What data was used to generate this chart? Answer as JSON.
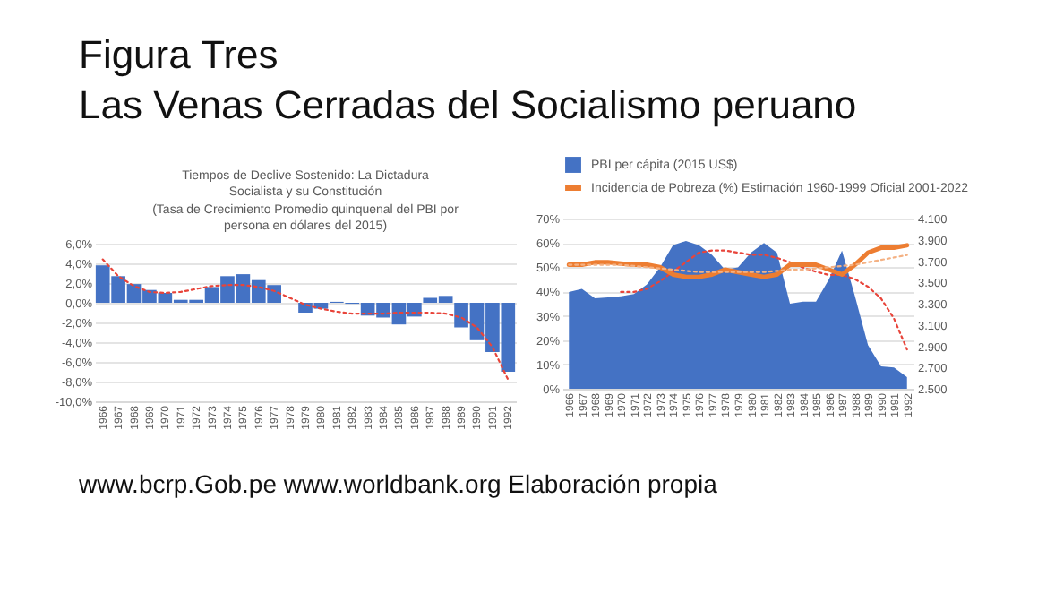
{
  "chart_data": [
    {
      "type": "other",
      "title": "Figura Tres",
      "subtitle": "Las Venas Cerradas del Socialismo peruano",
      "annotations": [
        "www.bcrp.Gob.pe www.worldbank.org Elaboración propia"
      ]
    },
    {
      "type": "bar",
      "title": "Tiempos de Declive Sostenido: La Dictadura Socialista y su Constitución",
      "subtitle": "(Tasa de Crecimiento Promedio quinquenal del PBI por persona en dólares del  2015)",
      "categories": [
        "1966",
        "1967",
        "1968",
        "1969",
        "1970",
        "1971",
        "1972",
        "1973",
        "1974",
        "1975",
        "1976",
        "1977",
        "1978",
        "1979",
        "1980",
        "1981",
        "1982",
        "1983",
        "1984",
        "1985",
        "1986",
        "1987",
        "1988",
        "1989",
        "1990",
        "1991",
        "1992"
      ],
      "series": [
        {
          "type": "bar",
          "color": "#4472c4",
          "values": [
            3.8,
            2.7,
            1.9,
            1.3,
            1.0,
            0.3,
            0.3,
            1.6,
            2.7,
            2.9,
            2.3,
            1.8,
            0,
            -1.0,
            -0.6,
            0.1,
            -0.1,
            -1.3,
            -1.5,
            -2.2,
            -1.4,
            0.5,
            0.7,
            -2.5,
            -3.8,
            -5.0,
            -7.0
          ]
        },
        {
          "type": "line",
          "color": "#e8443a",
          "line_style": "dotted",
          "values": [
            4.4,
            2.7,
            1.7,
            1.1,
            1.0,
            1.1,
            1.4,
            1.7,
            1.8,
            1.8,
            1.6,
            1.2,
            0.5,
            -0.2,
            -0.6,
            -0.9,
            -1.1,
            -1.1,
            -1.1,
            -1.0,
            -1.0,
            -1.0,
            -1.1,
            -1.5,
            -2.5,
            -4.5,
            -7.8
          ]
        }
      ],
      "ylim": [
        -10,
        6
      ],
      "yticks": [
        {
          "value": -10,
          "label": "-10,0%"
        },
        {
          "value": -8,
          "label": "-8,0%"
        },
        {
          "value": -6,
          "label": "-6,0%"
        },
        {
          "value": -4,
          "label": "-4,0%"
        },
        {
          "value": -2,
          "label": "-2,0%"
        },
        {
          "value": 0,
          "label": "0,0%"
        },
        {
          "value": 2,
          "label": "2,0%"
        },
        {
          "value": 4,
          "label": "4,0%"
        },
        {
          "value": 6,
          "label": "6,0%"
        }
      ],
      "grid": "y"
    },
    {
      "type": "line",
      "categories": [
        "1966",
        "1967",
        "1968",
        "1969",
        "1970",
        "1971",
        "1972",
        "1973",
        "1974",
        "1975",
        "1976",
        "1977",
        "1978",
        "1979",
        "1980",
        "1981",
        "1982",
        "1983",
        "1984",
        "1985",
        "1986",
        "1987",
        "1988",
        "1989",
        "1990",
        "1991",
        "1992"
      ],
      "series": [
        {
          "type": "area",
          "name": "PBI per cápita (2015 US$)",
          "color": "#4472c4",
          "axis": "y2",
          "values": [
            3410,
            3440,
            3350,
            3360,
            3370,
            3390,
            3480,
            3640,
            3850,
            3890,
            3850,
            3760,
            3620,
            3640,
            3780,
            3870,
            3780,
            3300,
            3320,
            3320,
            3530,
            3800,
            3370,
            2910,
            2710,
            2700,
            2610
          ]
        },
        {
          "type": "line",
          "name": "Incidencia de Pobreza (%) Estimación  1960-1999 Oficial 2001-2022",
          "color": "#ed7d31",
          "values": [
            51,
            51,
            52,
            52,
            51.5,
            51,
            51,
            50,
            47,
            46,
            46,
            47,
            49,
            48,
            47,
            46,
            47,
            51,
            51,
            51,
            49,
            47,
            51,
            56,
            58,
            58,
            59
          ]
        },
        {
          "type": "line",
          "color": "#e8443a",
          "axis": "y2",
          "line_style": "dotted",
          "values": [
            null,
            null,
            null,
            null,
            3410,
            3410,
            3440,
            3510,
            3600,
            3690,
            3780,
            3800,
            3800,
            3780,
            3760,
            3760,
            3730,
            3690,
            3640,
            3600,
            3570,
            3570,
            3530,
            3460,
            3350,
            3160,
            2870
          ]
        },
        {
          "type": "line",
          "color": "#f4b183",
          "line_style": "dotted",
          "values": [
            51,
            51,
            51,
            51,
            51,
            50.5,
            50,
            49.5,
            49,
            48.5,
            48,
            48,
            48,
            48,
            48,
            48,
            48.5,
            49,
            49,
            49.5,
            50,
            50.5,
            51,
            52,
            53,
            54,
            55
          ]
        }
      ],
      "ylim": [
        0,
        70
      ],
      "yticks": [
        {
          "value": 0,
          "label": "0%"
        },
        {
          "value": 10,
          "label": "10%"
        },
        {
          "value": 20,
          "label": "20%"
        },
        {
          "value": 30,
          "label": "30%"
        },
        {
          "value": 40,
          "label": "40%"
        },
        {
          "value": 50,
          "label": "50%"
        },
        {
          "value": 60,
          "label": "60%"
        },
        {
          "value": 70,
          "label": "70%"
        }
      ],
      "y2lim": [
        2500,
        4100
      ],
      "y2ticks": [
        {
          "value": 2500,
          "label": "2.500"
        },
        {
          "value": 2700,
          "label": "2.700"
        },
        {
          "value": 2900,
          "label": "2.900"
        },
        {
          "value": 3100,
          "label": "3.100"
        },
        {
          "value": 3300,
          "label": "3.300"
        },
        {
          "value": 3500,
          "label": "3.500"
        },
        {
          "value": 3700,
          "label": "3.700"
        },
        {
          "value": 3900,
          "label": "3.900"
        },
        {
          "value": 4100,
          "label": "4.100"
        }
      ],
      "grid": "y",
      "legend": "top"
    }
  ]
}
